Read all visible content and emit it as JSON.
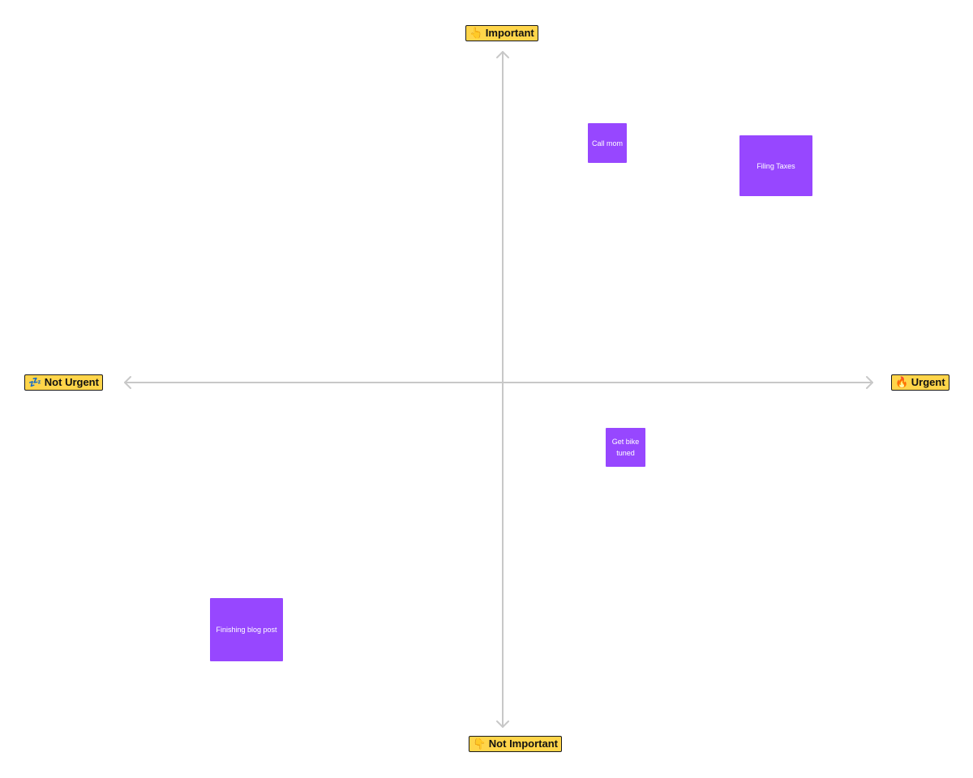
{
  "axes": {
    "top": "👆 Important",
    "bottom": "👇 Not Important",
    "left": "💤 Not Urgent",
    "right": "🔥 Urgent"
  },
  "notes": [
    {
      "text": "Call mom"
    },
    {
      "text": "Filing Taxes"
    },
    {
      "text": "Get bike tuned"
    },
    {
      "text": "Finishing blog post"
    }
  ]
}
